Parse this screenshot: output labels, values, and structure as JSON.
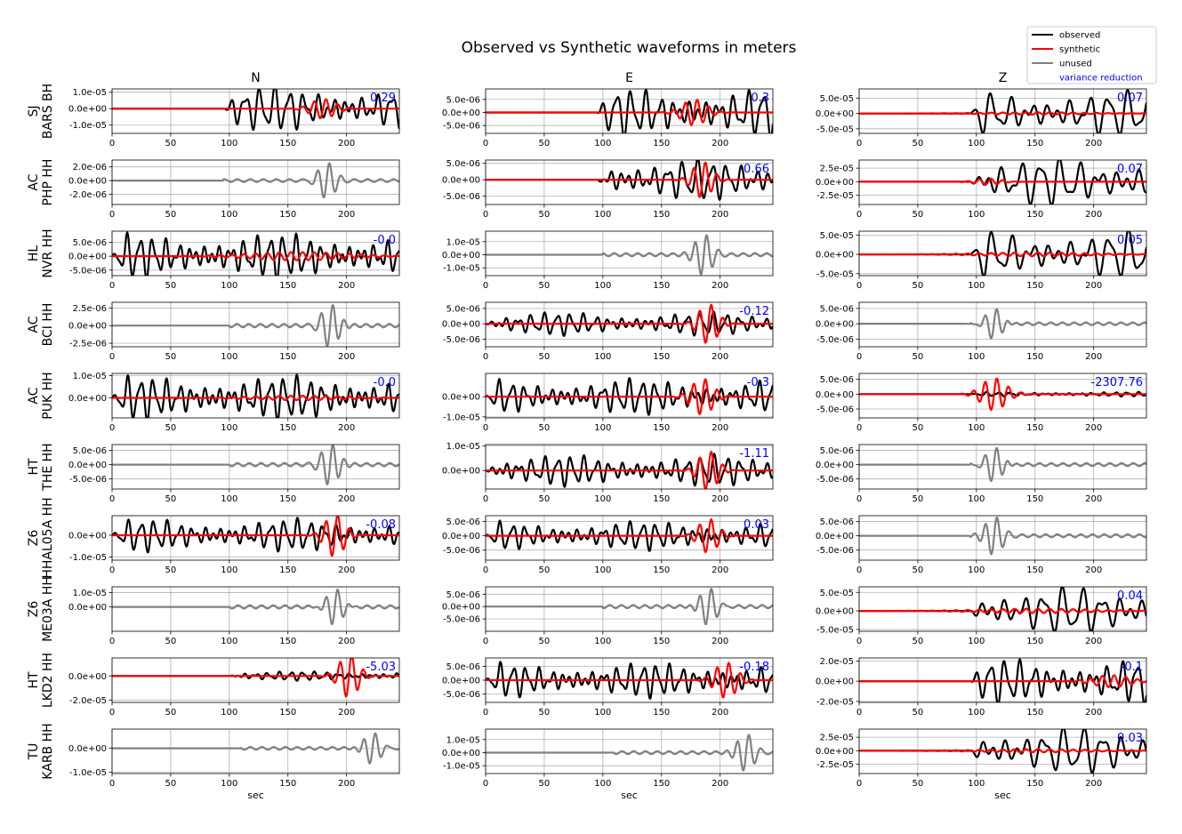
{
  "title": "Observed vs Synthetic waveforms in meters",
  "legend": {
    "placement": "top-right",
    "entries": [
      {
        "label": "observed",
        "color": "#000000",
        "kind": "line"
      },
      {
        "label": "synthetic",
        "color": "#ff0000",
        "kind": "line"
      },
      {
        "label": "unused",
        "color": "#808080",
        "kind": "line"
      },
      {
        "label": "variance reduction",
        "color": "#0000ff",
        "kind": "text"
      }
    ]
  },
  "chart_data": {
    "type": "line",
    "columns": [
      "N",
      "E",
      "Z"
    ],
    "xlabel": "sec",
    "xlim": [
      0,
      245
    ],
    "xticks": [
      0,
      50,
      100,
      150,
      200
    ],
    "grid": true,
    "stations": [
      {
        "network": "SJ",
        "station": "BARS BH",
        "panels": [
          {
            "status": "used",
            "vr": "0.29",
            "ylim": [
              -1.5e-05,
              1.2e-05
            ],
            "yticks": [
              1e-05,
              0,
              -1e-05
            ],
            "yticklabels": [
              "1.0e-05",
              "0.0e+00",
              "-1.0e-05"
            ],
            "onset": 95,
            "freq": 0.08,
            "obsAmp": 1.1e-05,
            "synAmp": 6e-06,
            "synCenter": 180,
            "synWidth": 10,
            "seed": 1
          },
          {
            "status": "used",
            "vr": "0.3",
            "ylim": [
              -8e-06,
              9e-06
            ],
            "yticks": [
              5e-06,
              0,
              -5e-06
            ],
            "yticklabels": [
              "5.0e-06",
              "0.0e+00",
              "-5.0e-06"
            ],
            "onset": 95,
            "freq": 0.08,
            "obsAmp": 7.5e-06,
            "synAmp": 5e-06,
            "synCenter": 178,
            "synWidth": 10,
            "seed": 2
          },
          {
            "status": "used",
            "vr": "0.07",
            "ylim": [
              -6.5e-05,
              8e-05
            ],
            "yticks": [
              5e-05,
              0,
              -5e-05
            ],
            "yticklabels": [
              "5.0e-05",
              "0.0e+00",
              "-5.0e-05"
            ],
            "onset": 95,
            "freq": 0.06,
            "obsAmp": 6e-05,
            "synAmp": 4e-06,
            "synCenter": 150,
            "synWidth": 40,
            "seed": 3
          }
        ]
      },
      {
        "network": "AC",
        "station": "PHP HH",
        "panels": [
          {
            "status": "unused",
            "vr": "",
            "ylim": [
              -3.5e-06,
              3e-06
            ],
            "yticks": [
              2e-06,
              0,
              -2e-06
            ],
            "yticklabels": [
              "2.0e-06",
              "0.0e+00",
              "-2.0e-06"
            ],
            "onset": 95,
            "freq": 0.09,
            "obsAmp": 2.5e-06,
            "burst": 183,
            "seed": 4
          },
          {
            "status": "used",
            "vr": "-0.66",
            "ylim": [
              -7.5e-06,
              6e-06
            ],
            "yticks": [
              5e-06,
              0,
              -5e-06
            ],
            "yticklabels": [
              "5.0e-06",
              "0.0e+00",
              "-5.0e-06"
            ],
            "onset": 95,
            "freq": 0.08,
            "obsAmp": 5e-06,
            "synAmp": 5.5e-06,
            "synCenter": 185,
            "synWidth": 8,
            "seed": 5
          },
          {
            "status": "used",
            "vr": "0.07",
            "ylim": [
              -4.2e-05,
              4e-05
            ],
            "yticks": [
              2.5e-05,
              0,
              -2.5e-05
            ],
            "yticklabels": [
              "2.5e-05",
              "0.0e+00",
              "-2.5e-05"
            ],
            "onset": 95,
            "freq": 0.06,
            "obsAmp": 3.6e-05,
            "synAmp": 6e-06,
            "synCenter": 110,
            "synWidth": 10,
            "seed": 6
          }
        ]
      },
      {
        "network": "HL",
        "station": "NVR HH",
        "panels": [
          {
            "status": "used",
            "vr": "-0.0",
            "ylim": [
              -7e-06,
              9e-06
            ],
            "yticks": [
              5e-06,
              0,
              -5e-06
            ],
            "yticklabels": [
              "5.0e-06",
              "0.0e+00",
              "-5.0e-06"
            ],
            "onset": 0,
            "freq": 0.09,
            "obsAmp": 6.5e-06,
            "synAmp": 1.5e-06,
            "synCenter": 160,
            "synWidth": 40,
            "seed": 7
          },
          {
            "status": "unused",
            "vr": "",
            "ylim": [
              -1.6e-05,
              1.8e-05
            ],
            "yticks": [
              1e-05,
              0,
              -1e-05
            ],
            "yticklabels": [
              "1.0e-05",
              "0.0e+00",
              "-1.0e-05"
            ],
            "onset": 100,
            "freq": 0.1,
            "obsAmp": 1.5e-05,
            "burst": 186,
            "seed": 8
          },
          {
            "status": "used",
            "vr": "0.05",
            "ylim": [
              -5.5e-05,
              6e-05
            ],
            "yticks": [
              5e-05,
              0,
              -5e-05
            ],
            "yticklabels": [
              "5.0e-05",
              "0.0e+00",
              "-5.0e-05"
            ],
            "onset": 95,
            "freq": 0.06,
            "obsAmp": 5e-05,
            "synAmp": 5e-06,
            "synCenter": 150,
            "synWidth": 45,
            "seed": 9
          }
        ]
      },
      {
        "network": "AC",
        "station": "BCI HH",
        "panels": [
          {
            "status": "unused",
            "vr": "",
            "ylim": [
              -3e-06,
              3.3e-06
            ],
            "yticks": [
              2.5e-06,
              0,
              -2.5e-06
            ],
            "yticklabels": [
              "2.5e-06",
              "0.0e+00",
              "-2.5e-06"
            ],
            "onset": 100,
            "freq": 0.1,
            "obsAmp": 3e-06,
            "burst": 186,
            "seed": 10
          },
          {
            "status": "used",
            "vr": "-0.12",
            "ylim": [
              -7.5e-06,
              7e-06
            ],
            "yticks": [
              5e-06,
              0,
              -5e-06
            ],
            "yticklabels": [
              "5.0e-06",
              "0.0e+00",
              "-5.0e-06"
            ],
            "onset": 0,
            "freq": 0.09,
            "obsAmp": 3e-06,
            "synAmp": 6.5e-06,
            "synCenter": 190,
            "synWidth": 8,
            "seed": 11
          },
          {
            "status": "unused",
            "vr": "",
            "ylim": [
              -7.5e-06,
              7e-06
            ],
            "yticks": [
              5e-06,
              0,
              -5e-06
            ],
            "yticklabels": [
              "5.0e-06",
              "0.0e+00",
              "-5.0e-06"
            ],
            "onset": 95,
            "freq": 0.1,
            "obsAmp": 5.5e-06,
            "burst": 115,
            "seed": 12
          }
        ]
      },
      {
        "network": "AC",
        "station": "PUK HH",
        "panels": [
          {
            "status": "used",
            "vr": "-0.0",
            "ylim": [
              -9e-06,
              1.1e-05
            ],
            "yticks": [
              1e-05,
              0
            ],
            "yticklabels": [
              "1.0e-05",
              "0.0e+00"
            ],
            "onset": 0,
            "freq": 0.09,
            "obsAmp": 8e-06,
            "synAmp": 1e-06,
            "synCenter": 160,
            "synWidth": 40,
            "seed": 13
          },
          {
            "status": "used",
            "vr": "-0.3",
            "ylim": [
              -1.05e-05,
              1.15e-05
            ],
            "yticks": [
              0,
              -1e-05
            ],
            "yticklabels": [
              "0.0e+00",
              "-1.0e-05"
            ],
            "onset": 0,
            "freq": 0.09,
            "obsAmp": 7e-06,
            "synAmp": 9e-06,
            "synCenter": 185,
            "synWidth": 9,
            "seed": 14
          },
          {
            "status": "used",
            "vr": "-2307.76",
            "ylim": [
              -8e-06,
              7e-06
            ],
            "yticks": [
              5e-06,
              0,
              -5e-06
            ],
            "yticklabels": [
              "5.0e-06",
              "0.0e+00",
              "-5.0e-06"
            ],
            "onset": 95,
            "freq": 0.1,
            "obsAmp": 6e-07,
            "synAmp": 5.5e-06,
            "synCenter": 115,
            "synWidth": 10,
            "seed": 15
          }
        ]
      },
      {
        "network": "HT",
        "station": "THE HH",
        "panels": [
          {
            "status": "unused",
            "vr": "",
            "ylim": [
              -8.5e-06,
              7e-06
            ],
            "yticks": [
              5e-06,
              0,
              -5e-06
            ],
            "yticklabels": [
              "5.0e-06",
              "0.0e+00",
              "-5.0e-06"
            ],
            "onset": 100,
            "freq": 0.1,
            "obsAmp": 7e-06,
            "burst": 186,
            "seed": 16
          },
          {
            "status": "used",
            "vr": "-1.11",
            "ylim": [
              -7.5e-06,
              1.05e-05
            ],
            "yticks": [
              1e-05,
              0
            ],
            "yticklabels": [
              "1.0e-05",
              "0.0e+00"
            ],
            "onset": 0,
            "freq": 0.09,
            "obsAmp": 5e-06,
            "synAmp": 8e-06,
            "synCenter": 190,
            "synWidth": 8,
            "seed": 17
          },
          {
            "status": "unused",
            "vr": "",
            "ylim": [
              -8.5e-06,
              7e-06
            ],
            "yticks": [
              5e-06,
              0,
              -5e-06
            ],
            "yticklabels": [
              "5.0e-06",
              "0.0e+00",
              "-5.0e-06"
            ],
            "onset": 95,
            "freq": 0.1,
            "obsAmp": 6.5e-06,
            "burst": 115,
            "seed": 18
          }
        ]
      },
      {
        "network": "Z6",
        "station": "HHAL05A HH",
        "panels": [
          {
            "status": "used",
            "vr": "-0.08",
            "ylim": [
              -1.15e-05,
              9e-06
            ],
            "yticks": [
              0,
              -1e-05
            ],
            "yticklabels": [
              "0.0e+00",
              "-1.0e-05"
            ],
            "onset": 0,
            "freq": 0.09,
            "obsAmp": 6e-06,
            "synAmp": 1e-05,
            "synCenter": 190,
            "synWidth": 8,
            "seed": 19
          },
          {
            "status": "used",
            "vr": "0.03",
            "ylim": [
              -8.5e-06,
              7e-06
            ],
            "yticks": [
              5e-06,
              0,
              -5e-06
            ],
            "yticklabels": [
              "5.0e-06",
              "0.0e+00",
              "-5.0e-06"
            ],
            "onset": 0,
            "freq": 0.09,
            "obsAmp": 4e-06,
            "synAmp": 6e-06,
            "synCenter": 190,
            "synWidth": 8,
            "seed": 20
          },
          {
            "status": "unused",
            "vr": "",
            "ylim": [
              -8.5e-06,
              7e-06
            ],
            "yticks": [
              5e-06,
              0,
              -5e-06
            ],
            "yticklabels": [
              "5.0e-06",
              "0.0e+00",
              "-5.0e-06"
            ],
            "onset": 95,
            "freq": 0.1,
            "obsAmp": 6.5e-06,
            "burst": 115,
            "seed": 21
          }
        ]
      },
      {
        "network": "Z6",
        "station": "ME03A HH",
        "panels": [
          {
            "status": "unused",
            "vr": "",
            "ylim": [
              -1.7e-05,
              1.4e-05
            ],
            "yticks": [
              1e-05,
              0
            ],
            "yticklabels": [
              "1.0e-05",
              "0.0e+00"
            ],
            "onset": 100,
            "freq": 0.1,
            "obsAmp": 1.4e-05,
            "burst": 190,
            "seed": 22
          },
          {
            "status": "unused",
            "vr": "",
            "ylim": [
              -1e-05,
              8e-06
            ],
            "yticks": [
              5e-06,
              0,
              -5e-06
            ],
            "yticklabels": [
              "5.0e-06",
              "0.0e+00",
              "-5.0e-06"
            ],
            "onset": 100,
            "freq": 0.1,
            "obsAmp": 8e-06,
            "burst": 190,
            "seed": 23
          },
          {
            "status": "used",
            "vr": "0.04",
            "ylim": [
              -5.5e-05,
              6.5e-05
            ],
            "yticks": [
              5e-05,
              0,
              -5e-05
            ],
            "yticklabels": [
              "5.0e-05",
              "0.0e+00",
              "-5.0e-05"
            ],
            "onset": 95,
            "freq": 0.06,
            "obsAmp": 5.2e-05,
            "synAmp": 6e-06,
            "synCenter": 150,
            "synWidth": 45,
            "seed": 24
          }
        ]
      },
      {
        "network": "HT",
        "station": "LKD2 HH",
        "panels": [
          {
            "status": "used",
            "vr": "-5.03",
            "ylim": [
              -2.2e-05,
              1.5e-05
            ],
            "yticks": [
              0,
              -2e-05
            ],
            "yticklabels": [
              "0.0e+00",
              "-2.0e-05"
            ],
            "onset": 100,
            "freq": 0.1,
            "obsAmp": 3e-06,
            "synAmp": 1.8e-05,
            "synCenter": 202,
            "synWidth": 8,
            "seed": 25
          },
          {
            "status": "used",
            "vr": "-0.18",
            "ylim": [
              -8e-06,
              8e-06
            ],
            "yticks": [
              5e-06,
              0,
              -5e-06
            ],
            "yticklabels": [
              "5.0e-06",
              "0.0e+00",
              "-5.0e-06"
            ],
            "onset": 0,
            "freq": 0.09,
            "obsAmp": 5e-06,
            "synAmp": 6.5e-06,
            "synCenter": 205,
            "synWidth": 9,
            "seed": 26
          },
          {
            "status": "used",
            "vr": "-0.1",
            "ylim": [
              -2.1e-05,
              2.3e-05
            ],
            "yticks": [
              2e-05,
              0,
              -2e-05
            ],
            "yticklabels": [
              "2.0e-05",
              "0.0e+00",
              "-2.0e-05"
            ],
            "onset": 95,
            "freq": 0.08,
            "obsAmp": 1.8e-05,
            "synAmp": 6e-06,
            "synCenter": 215,
            "synWidth": 15,
            "seed": 27
          }
        ]
      },
      {
        "network": "TU",
        "station": "KARB HH",
        "panels": [
          {
            "status": "unused",
            "vr": "",
            "ylim": [
              -1.05e-05,
              8e-06
            ],
            "yticks": [
              0,
              -1e-05
            ],
            "yticklabels": [
              "0.0e+00",
              "-1.0e-05"
            ],
            "onset": 110,
            "freq": 0.1,
            "obsAmp": 7e-06,
            "burst": 222,
            "seed": 28
          },
          {
            "status": "unused",
            "vr": "",
            "ylim": [
              -1.6e-05,
              1.8e-05
            ],
            "yticks": [
              1e-05,
              0,
              -1e-05
            ],
            "yticklabels": [
              "1.0e-05",
              "0.0e+00",
              "-1.0e-05"
            ],
            "onset": 110,
            "freq": 0.1,
            "obsAmp": 1.4e-05,
            "burst": 222,
            "seed": 29
          },
          {
            "status": "used",
            "vr": "0.03",
            "ylim": [
              -4.2e-05,
              4e-05
            ],
            "yticks": [
              2.5e-05,
              0,
              -2.5e-05
            ],
            "yticklabels": [
              "2.5e-05",
              "0.0e+00",
              "-2.5e-05"
            ],
            "onset": 95,
            "freq": 0.06,
            "obsAmp": 3.5e-05,
            "synAmp": 3e-06,
            "synCenter": 150,
            "synWidth": 45,
            "seed": 30
          }
        ]
      }
    ]
  }
}
